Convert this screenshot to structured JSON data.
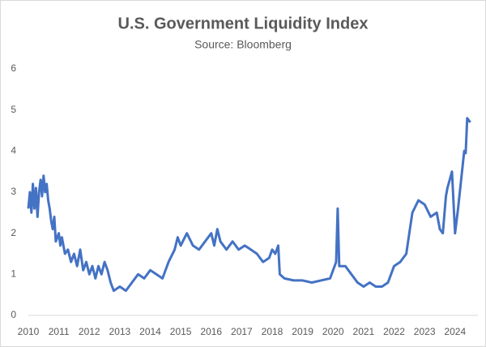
{
  "chart_data": {
    "type": "line",
    "title": "U.S. Government Liquidity Index",
    "subtitle": "Source: Bloomberg",
    "x": [
      2010.0,
      2010.05,
      2010.1,
      2010.15,
      2010.2,
      2010.25,
      2010.3,
      2010.35,
      2010.4,
      2010.45,
      2010.5,
      2010.55,
      2010.6,
      2010.65,
      2010.7,
      2010.75,
      2010.8,
      2010.85,
      2010.9,
      2011.0,
      2011.05,
      2011.1,
      2011.2,
      2011.3,
      2011.4,
      2011.5,
      2011.6,
      2011.7,
      2011.8,
      2011.9,
      2012.0,
      2012.1,
      2012.2,
      2012.3,
      2012.4,
      2012.5,
      2012.6,
      2012.7,
      2012.8,
      2013.0,
      2013.2,
      2013.4,
      2013.6,
      2013.8,
      2014.0,
      2014.2,
      2014.4,
      2014.6,
      2014.8,
      2014.9,
      2015.0,
      2015.2,
      2015.4,
      2015.6,
      2015.8,
      2016.0,
      2016.1,
      2016.2,
      2016.3,
      2016.5,
      2016.7,
      2016.9,
      2017.1,
      2017.3,
      2017.5,
      2017.7,
      2017.9,
      2018.0,
      2018.1,
      2018.2,
      2018.25,
      2018.4,
      2018.7,
      2019.0,
      2019.3,
      2019.6,
      2019.9,
      2020.1,
      2020.15,
      2020.2,
      2020.4,
      2020.6,
      2020.8,
      2021.0,
      2021.2,
      2021.4,
      2021.6,
      2021.8,
      2022.0,
      2022.2,
      2022.4,
      2022.5,
      2022.6,
      2022.8,
      2023.0,
      2023.2,
      2023.4,
      2023.5,
      2023.6,
      2023.7,
      2023.75,
      2023.9,
      2024.0,
      2024.1,
      2024.2,
      2024.3,
      2024.35,
      2024.4,
      2024.5
    ],
    "values": [
      2.6,
      3.0,
      2.5,
      3.2,
      2.6,
      3.1,
      2.4,
      3.0,
      3.3,
      2.9,
      3.4,
      3.0,
      3.2,
      2.8,
      2.6,
      2.3,
      2.1,
      2.4,
      1.8,
      2.0,
      1.7,
      1.9,
      1.5,
      1.6,
      1.3,
      1.5,
      1.2,
      1.6,
      1.1,
      1.3,
      1.0,
      1.2,
      0.9,
      1.2,
      1.0,
      1.3,
      1.1,
      0.8,
      0.6,
      0.7,
      0.6,
      0.8,
      1.0,
      0.9,
      1.1,
      1.0,
      0.9,
      1.3,
      1.6,
      1.9,
      1.7,
      2.0,
      1.7,
      1.6,
      1.8,
      2.0,
      1.7,
      2.1,
      1.8,
      1.6,
      1.8,
      1.6,
      1.7,
      1.6,
      1.5,
      1.3,
      1.4,
      1.6,
      1.5,
      1.7,
      1.0,
      0.9,
      0.85,
      0.85,
      0.8,
      0.85,
      0.9,
      1.3,
      2.6,
      1.2,
      1.2,
      1.0,
      0.8,
      0.7,
      0.8,
      0.7,
      0.7,
      0.8,
      1.2,
      1.3,
      1.5,
      2.0,
      2.5,
      2.8,
      2.7,
      2.4,
      2.5,
      2.1,
      2.0,
      2.9,
      3.1,
      3.5,
      2.0,
      2.6,
      3.3,
      4.0,
      3.95,
      4.8,
      4.7
    ],
    "color": "#4472c4",
    "xlim": [
      2010,
      2024.75
    ],
    "xticks": [
      2010,
      2011,
      2012,
      2013,
      2014,
      2015,
      2016,
      2017,
      2018,
      2019,
      2020,
      2021,
      2022,
      2023,
      2024
    ],
    "ylim": [
      0,
      6
    ],
    "yticks": [
      0,
      1,
      2,
      3,
      4,
      5,
      6
    ]
  }
}
